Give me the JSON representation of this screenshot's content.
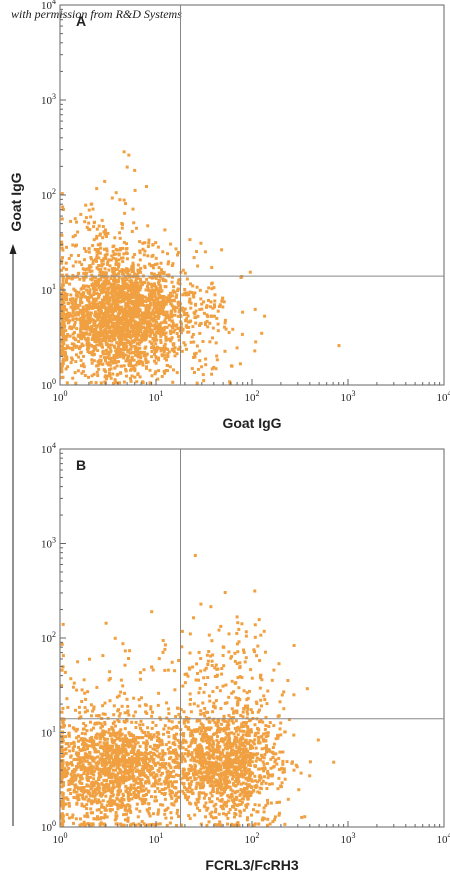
{
  "watermark": "with permission from R&D Systems",
  "y_axis_title": "Goat IgG",
  "colors": {
    "points": "#f0a040",
    "frame": "#666666",
    "gate": "#888888"
  },
  "chart_data": [
    {
      "type": "scatter",
      "panel": "A",
      "xlabel": "Goat IgG",
      "ylabel": "Goat IgG",
      "xscale": "log",
      "yscale": "log",
      "xlim": [
        1,
        10000
      ],
      "ylim": [
        1,
        10000
      ],
      "x_ticks": [
        1,
        10,
        100,
        1000,
        10000
      ],
      "y_ticks": [
        1,
        10,
        100,
        1000,
        10000
      ],
      "quadrant_gate": {
        "x": 18,
        "y": 14
      },
      "populations": [
        {
          "description": "main cluster",
          "x_center": 4,
          "y_center": 5,
          "x_spread_decades": 0.35,
          "y_spread_decades": 0.3,
          "count": 2200
        },
        {
          "description": "upper tail",
          "x_center": 3,
          "y_center": 20,
          "x_spread_decades": 0.3,
          "y_spread_decades": 0.35,
          "count": 220
        },
        {
          "description": "right tail",
          "x_center": 20,
          "y_center": 5,
          "x_spread_decades": 0.35,
          "y_spread_decades": 0.3,
          "count": 220
        },
        {
          "description": "outlier",
          "x_center": 800,
          "y_center": 2.5,
          "x_spread_decades": 0.02,
          "y_spread_decades": 0.02,
          "count": 1
        }
      ]
    },
    {
      "type": "scatter",
      "panel": "B",
      "xlabel": "FCRL3/FcRH3",
      "ylabel": "Goat IgG",
      "xscale": "log",
      "yscale": "log",
      "xlim": [
        1,
        10000
      ],
      "ylim": [
        1,
        10000
      ],
      "x_ticks": [
        1,
        10,
        100,
        1000,
        10000
      ],
      "y_ticks": [
        1,
        10,
        100,
        1000,
        10000
      ],
      "quadrant_gate": {
        "x": 18,
        "y": 14
      },
      "populations": [
        {
          "description": "negative cluster",
          "x_center": 3.5,
          "y_center": 4,
          "x_spread_decades": 0.35,
          "y_spread_decades": 0.3,
          "count": 1500
        },
        {
          "description": "positive cluster",
          "x_center": 50,
          "y_center": 4.5,
          "x_spread_decades": 0.3,
          "y_spread_decades": 0.3,
          "count": 1300
        },
        {
          "description": "upper scatter",
          "x_center": 50,
          "y_center": 40,
          "x_spread_decades": 0.35,
          "y_spread_decades": 0.35,
          "count": 160
        },
        {
          "description": "upper left scatter",
          "x_center": 3,
          "y_center": 35,
          "x_spread_decades": 0.4,
          "y_spread_decades": 0.35,
          "count": 60
        }
      ]
    }
  ]
}
